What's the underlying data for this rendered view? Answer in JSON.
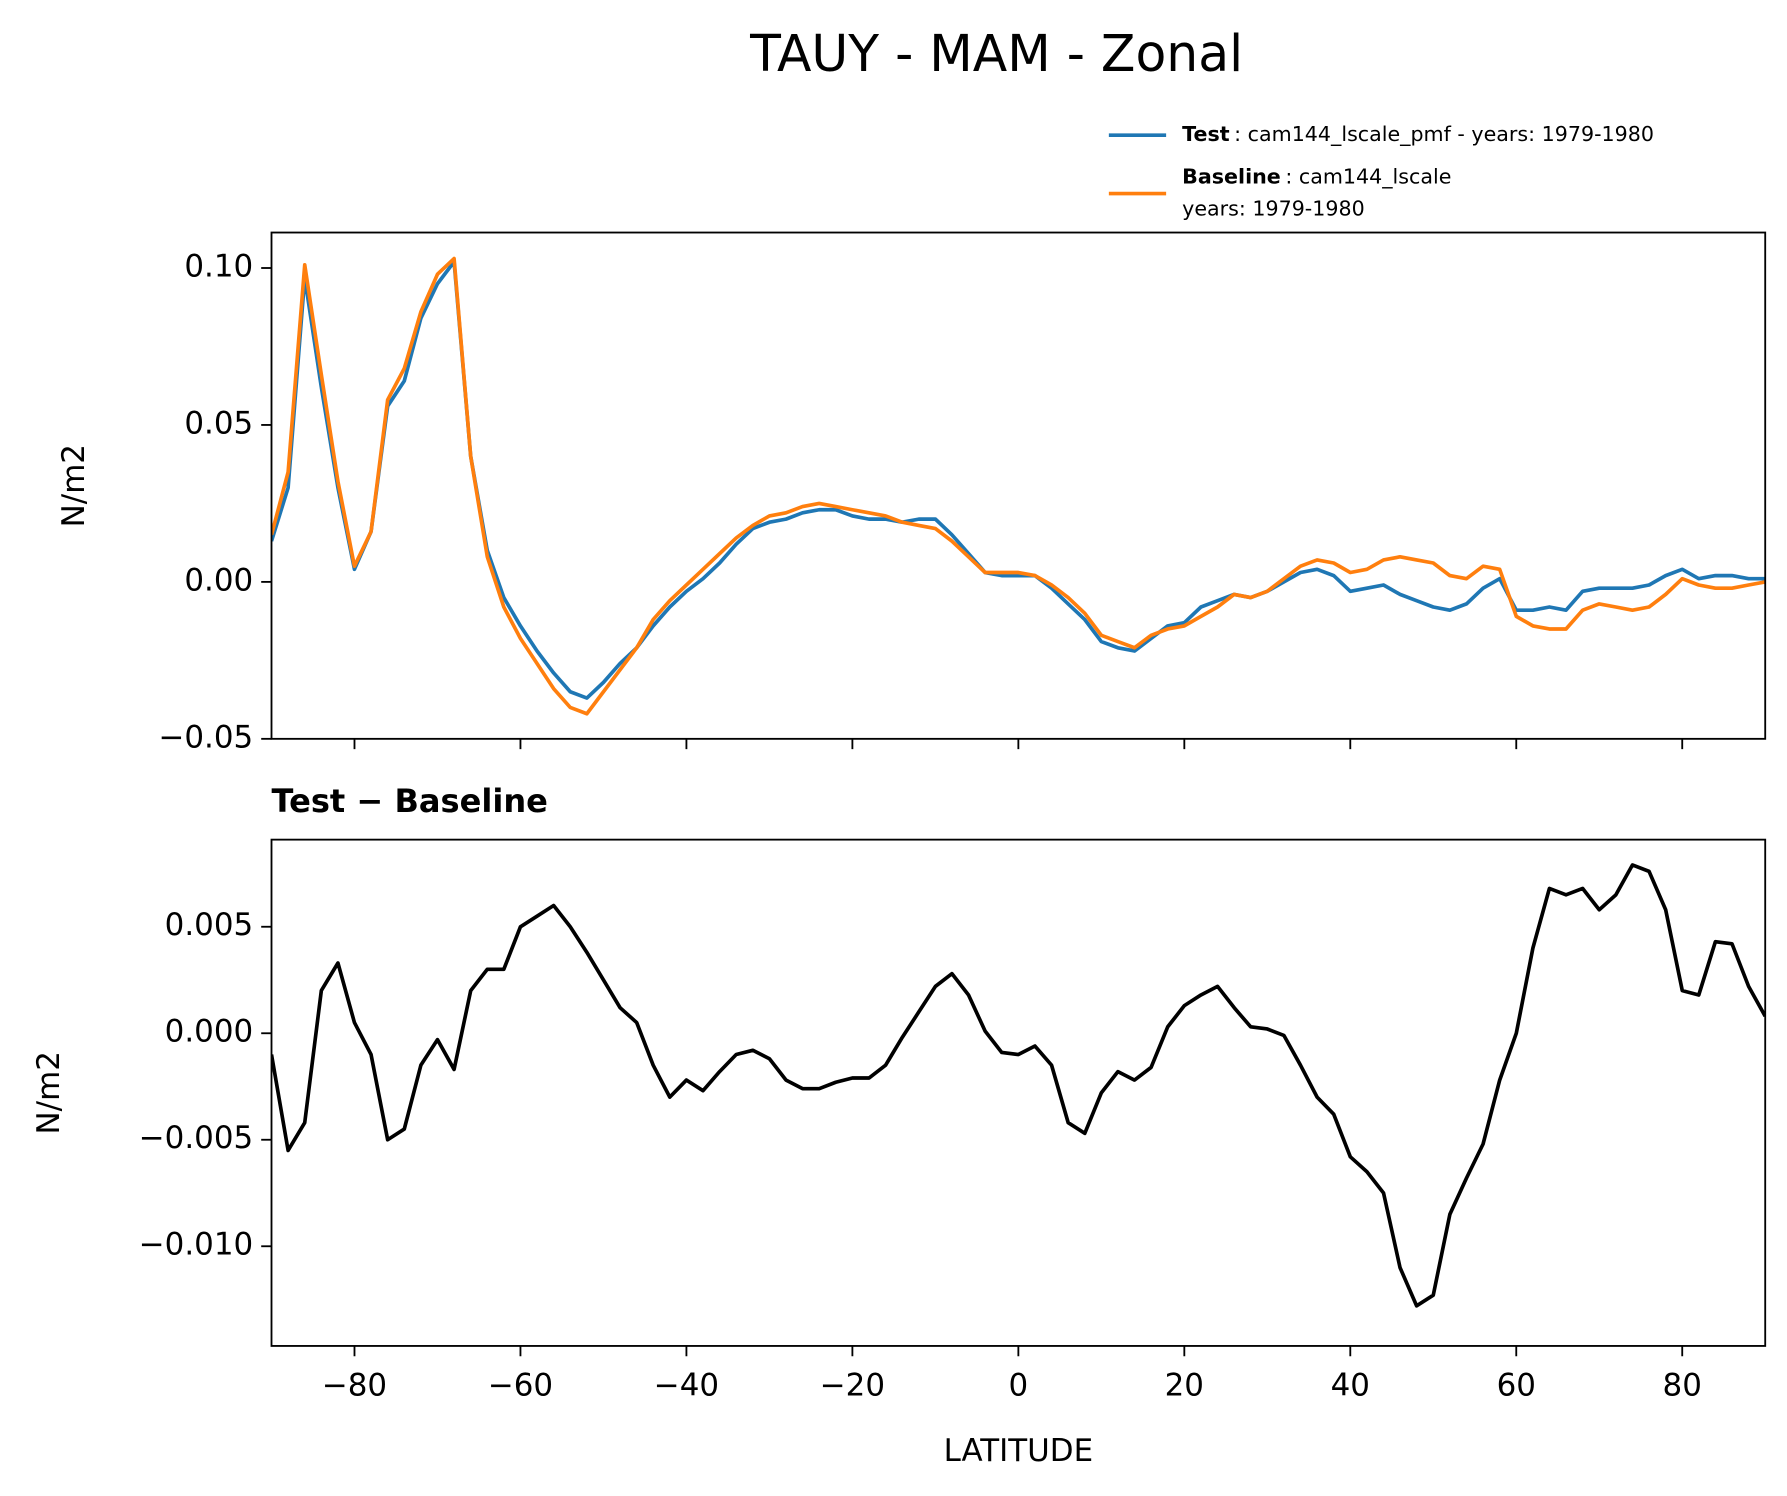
{
  "chart_data": [
    {
      "type": "line",
      "title": "TAUY - MAM - Zonal",
      "ylabel": "N/m2",
      "x": [
        -90,
        -88,
        -86,
        -84,
        -82,
        -80,
        -78,
        -76,
        -74,
        -72,
        -70,
        -68,
        -66,
        -64,
        -62,
        -60,
        -58,
        -56,
        -54,
        -52,
        -50,
        -48,
        -46,
        -44,
        -42,
        -40,
        -38,
        -36,
        -34,
        -32,
        -30,
        -28,
        -26,
        -24,
        -22,
        -20,
        -18,
        -16,
        -14,
        -12,
        -10,
        -8,
        -6,
        -4,
        -2,
        0,
        2,
        4,
        6,
        8,
        10,
        12,
        14,
        16,
        18,
        20,
        22,
        24,
        26,
        28,
        30,
        32,
        34,
        36,
        38,
        40,
        42,
        44,
        46,
        48,
        50,
        52,
        54,
        56,
        58,
        60,
        62,
        64,
        66,
        68,
        70,
        72,
        74,
        76,
        78,
        80,
        82,
        84,
        86,
        88,
        90
      ],
      "xlim": [
        -90,
        90
      ],
      "ylim": [
        -0.05,
        0.1113
      ],
      "yticks": [
        {
          "value": -0.05,
          "label": "−0.05"
        },
        {
          "value": 0,
          "label": "0.00"
        },
        {
          "value": 0.05,
          "label": "0.05"
        },
        {
          "value": 0.1,
          "label": "0.10"
        }
      ],
      "series": [
        {
          "name": "Test",
          "description": ": cam144_lscale_pmf - years: 1979-1980",
          "color": "#1f77b4",
          "values": [
            0.013,
            0.03,
            0.097,
            0.062,
            0.03,
            0.004,
            0.016,
            0.056,
            0.064,
            0.084,
            0.095,
            0.102,
            0.04,
            0.01,
            -0.005,
            -0.014,
            -0.022,
            -0.029,
            -0.035,
            -0.037,
            -0.032,
            -0.026,
            -0.021,
            -0.014,
            -0.008,
            -0.003,
            0.001,
            0.006,
            0.012,
            0.017,
            0.019,
            0.02,
            0.022,
            0.023,
            0.023,
            0.021,
            0.02,
            0.02,
            0.019,
            0.02,
            0.02,
            0.015,
            0.009,
            0.003,
            0.002,
            0.002,
            0.002,
            -0.002,
            -0.007,
            -0.012,
            -0.019,
            -0.021,
            -0.022,
            -0.018,
            -0.014,
            -0.013,
            -0.008,
            -0.006,
            -0.004,
            -0.005,
            -0.003,
            0.0,
            0.003,
            0.004,
            0.002,
            -0.003,
            -0.002,
            -0.001,
            -0.004,
            -0.006,
            -0.008,
            -0.009,
            -0.007,
            -0.002,
            0.001,
            -0.009,
            -0.009,
            -0.008,
            -0.009,
            -0.003,
            -0.002,
            -0.002,
            -0.002,
            -0.001,
            0.002,
            0.004,
            0.001,
            0.002,
            0.002,
            0.001,
            0.001
          ]
        },
        {
          "name": "Baseline",
          "description": [
            ": cam144_lscale",
            "years: 1979-1980"
          ],
          "color": "#ff7f0e",
          "values": [
            0.015,
            0.035,
            0.101,
            0.066,
            0.032,
            0.005,
            0.016,
            0.058,
            0.068,
            0.086,
            0.098,
            0.103,
            0.04,
            0.008,
            -0.008,
            -0.018,
            -0.026,
            -0.034,
            -0.04,
            -0.042,
            -0.035,
            -0.028,
            -0.021,
            -0.012,
            -0.006,
            -0.001,
            0.004,
            0.009,
            0.014,
            0.018,
            0.021,
            0.022,
            0.024,
            0.025,
            0.024,
            0.023,
            0.022,
            0.021,
            0.019,
            0.018,
            0.017,
            0.013,
            0.008,
            0.003,
            0.003,
            0.003,
            0.002,
            -0.001,
            -0.005,
            -0.01,
            -0.017,
            -0.019,
            -0.021,
            -0.017,
            -0.015,
            -0.014,
            -0.011,
            -0.008,
            -0.004,
            -0.005,
            -0.003,
            0.001,
            0.005,
            0.007,
            0.006,
            0.003,
            0.004,
            0.007,
            0.008,
            0.007,
            0.006,
            0.002,
            0.001,
            0.005,
            0.004,
            -0.011,
            -0.014,
            -0.015,
            -0.015,
            -0.009,
            -0.007,
            -0.008,
            -0.009,
            -0.008,
            -0.004,
            0.001,
            -0.001,
            -0.002,
            -0.002,
            -0.001,
            0.0
          ]
        }
      ]
    },
    {
      "type": "line",
      "title": "Test − Baseline",
      "ylabel": "N/m2",
      "xlabel": "LATITUDE",
      "x": [
        -90,
        -88,
        -86,
        -84,
        -82,
        -80,
        -78,
        -76,
        -74,
        -72,
        -70,
        -68,
        -66,
        -64,
        -62,
        -60,
        -58,
        -56,
        -54,
        -52,
        -50,
        -48,
        -46,
        -44,
        -42,
        -40,
        -38,
        -36,
        -34,
        -32,
        -30,
        -28,
        -26,
        -24,
        -22,
        -20,
        -18,
        -16,
        -14,
        -12,
        -10,
        -8,
        -6,
        -4,
        -2,
        0,
        2,
        4,
        6,
        8,
        10,
        12,
        14,
        16,
        18,
        20,
        22,
        24,
        26,
        28,
        30,
        32,
        34,
        36,
        38,
        40,
        42,
        44,
        46,
        48,
        50,
        52,
        54,
        56,
        58,
        60,
        62,
        64,
        66,
        68,
        70,
        72,
        74,
        76,
        78,
        80,
        82,
        84,
        86,
        88,
        90
      ],
      "xlim": [
        -90,
        90
      ],
      "ylim": [
        -0.01468,
        0.00909
      ],
      "xticks": [
        {
          "value": -80,
          "label": "−80"
        },
        {
          "value": -60,
          "label": "−60"
        },
        {
          "value": -40,
          "label": "−40"
        },
        {
          "value": -20,
          "label": "−20"
        },
        0,
        20,
        40,
        60,
        80
      ],
      "yticks": [
        {
          "value": -0.01,
          "label": "−0.010"
        },
        {
          "value": -0.005,
          "label": "−0.005"
        },
        {
          "value": 0,
          "label": "0.000"
        },
        {
          "value": 0.005,
          "label": "0.005"
        }
      ],
      "series": [
        {
          "color": "#000000",
          "values": [
            -0.001,
            -0.0055,
            -0.0042,
            0.002,
            0.0033,
            0.0005,
            -0.001,
            -0.005,
            -0.0045,
            -0.0015,
            -0.0003,
            -0.0017,
            0.002,
            0.003,
            0.003,
            0.005,
            0.0055,
            0.006,
            0.005,
            0.0038,
            0.0025,
            0.0012,
            0.0005,
            -0.0015,
            -0.003,
            -0.0022,
            -0.0027,
            -0.0018,
            -0.001,
            -0.0008,
            -0.0012,
            -0.0022,
            -0.0026,
            -0.0026,
            -0.0023,
            -0.0021,
            -0.0021,
            -0.0015,
            -0.0002,
            0.001,
            0.0022,
            0.0028,
            0.0018,
            0.0001,
            -0.0009,
            -0.001,
            -0.0006,
            -0.0015,
            -0.0042,
            -0.0047,
            -0.0028,
            -0.0018,
            -0.0022,
            -0.0016,
            0.0003,
            0.0013,
            0.0018,
            0.0022,
            0.0012,
            0.0003,
            0.0002,
            -0.0001,
            -0.0015,
            -0.003,
            -0.0038,
            -0.0058,
            -0.0065,
            -0.0075,
            -0.011,
            -0.0128,
            -0.0123,
            -0.0085,
            -0.0068,
            -0.0052,
            -0.0022,
            0.0,
            0.004,
            0.0068,
            0.0065,
            0.0068,
            0.0058,
            0.0065,
            0.0079,
            0.0076,
            0.0058,
            0.002,
            0.0018,
            0.0043,
            0.0042,
            0.0022,
            0.0008
          ]
        }
      ]
    }
  ]
}
